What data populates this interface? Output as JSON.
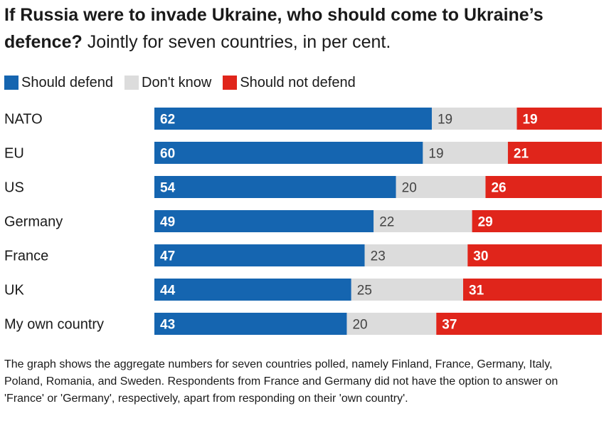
{
  "title": {
    "bold": "If Russia were to invade Ukraine, who should come to Ukraine’s defence?",
    "subtitle": "Jointly for seven countries, in per cent."
  },
  "colors": {
    "should_defend": "#1565b0",
    "dont_know": "#dcdcdc",
    "should_not_defend": "#e0251b"
  },
  "chart_data": {
    "type": "bar",
    "stacked": true,
    "orientation": "horizontal",
    "categories": [
      "NATO",
      "EU",
      "US",
      "Germany",
      "France",
      "UK",
      "My own country"
    ],
    "series": [
      {
        "name": "Should defend",
        "values": [
          62,
          60,
          54,
          49,
          47,
          44,
          43
        ]
      },
      {
        "name": "Don't know",
        "values": [
          19,
          19,
          20,
          22,
          23,
          25,
          20
        ]
      },
      {
        "name": "Should not defend",
        "values": [
          19,
          21,
          26,
          29,
          30,
          31,
          37
        ]
      }
    ],
    "legend_position": "top-left",
    "grid": false
  },
  "footnote": "The graph shows the aggregate numbers for seven countries polled, namely Finland, France, Germany, Italy, Poland, Romania, and Sweden. Respondents from France and Germany did not have the option to answer on 'France' or 'Germany', respectively, apart from responding on their 'own country'."
}
